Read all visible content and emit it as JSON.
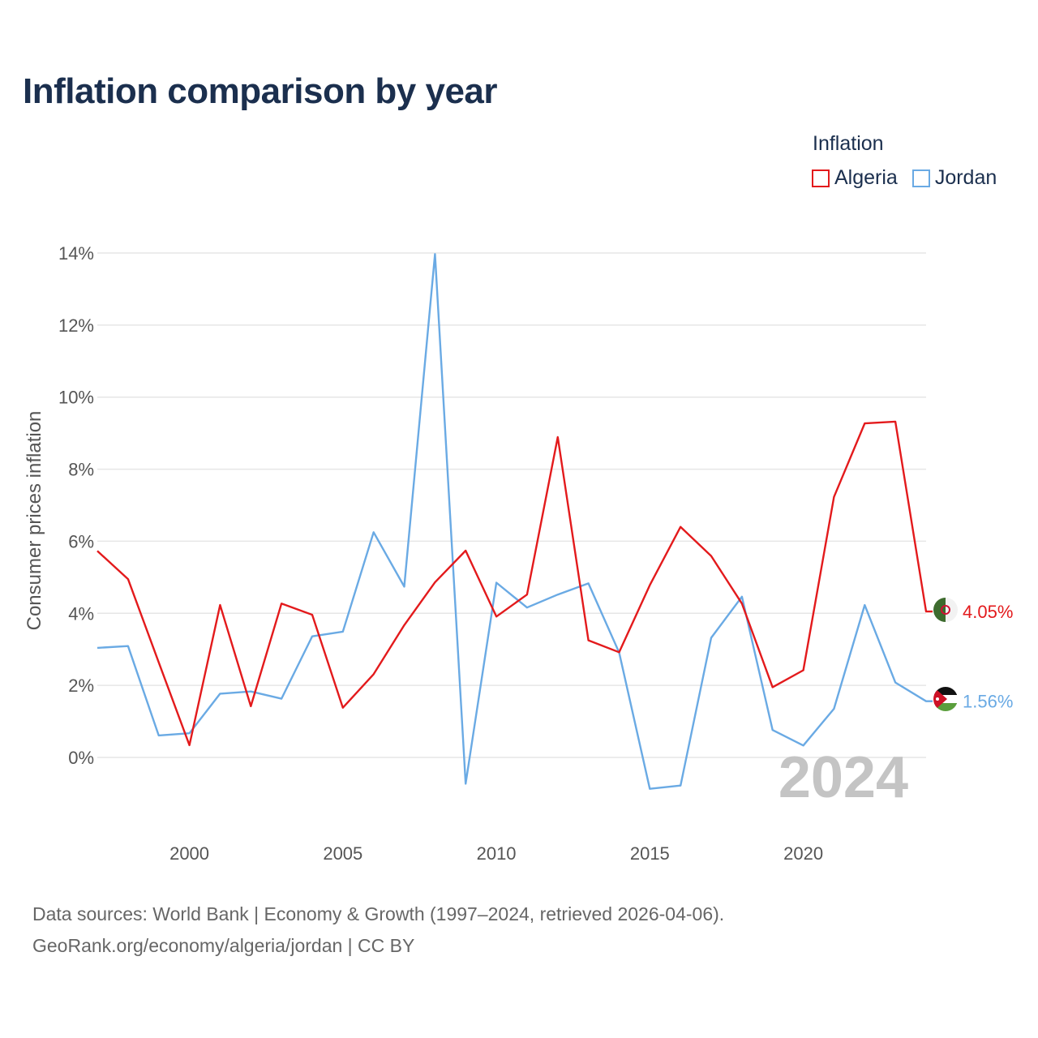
{
  "title": "Inflation comparison by year",
  "legend": {
    "title": "Inflation",
    "items": [
      {
        "label": "Algeria",
        "color": "#e31a1c"
      },
      {
        "label": "Jordan",
        "color": "#6aaae4"
      }
    ]
  },
  "chart_data": {
    "type": "line",
    "title": "Inflation comparison by year",
    "xlabel": "",
    "ylabel": "Consumer prices inflation",
    "xlim": [
      1997,
      2024
    ],
    "ylim": [
      -1.5,
      14
    ],
    "x_ticks": [
      2000,
      2005,
      2010,
      2015,
      2020
    ],
    "y_ticks": [
      0,
      2,
      4,
      6,
      8,
      10,
      12,
      14
    ],
    "y_tick_labels": [
      "0%",
      "2%",
      "4%",
      "6%",
      "8%",
      "10%",
      "12%",
      "14%"
    ],
    "grid": true,
    "x": [
      1997,
      1998,
      1999,
      2000,
      2001,
      2002,
      2003,
      2004,
      2005,
      2006,
      2007,
      2008,
      2009,
      2010,
      2011,
      2012,
      2013,
      2014,
      2015,
      2016,
      2017,
      2018,
      2019,
      2020,
      2021,
      2022,
      2023,
      2024
    ],
    "series": [
      {
        "name": "Algeria",
        "color": "#e31a1c",
        "values": [
          5.73,
          4.95,
          2.64,
          0.34,
          4.23,
          1.42,
          4.27,
          3.96,
          1.38,
          2.31,
          3.67,
          4.86,
          5.74,
          3.91,
          4.52,
          8.89,
          3.25,
          2.92,
          4.78,
          6.4,
          5.59,
          4.27,
          1.95,
          2.42,
          7.23,
          9.27,
          9.32,
          4.05
        ]
      },
      {
        "name": "Jordan",
        "color": "#6aaae4",
        "values": [
          3.04,
          3.09,
          0.61,
          0.67,
          1.77,
          1.83,
          1.63,
          3.36,
          3.49,
          6.25,
          4.74,
          13.97,
          -0.73,
          4.85,
          4.16,
          4.52,
          4.83,
          2.91,
          -0.87,
          -0.78,
          3.32,
          4.46,
          0.76,
          0.33,
          1.35,
          4.23,
          2.08,
          1.56
        ]
      }
    ],
    "end_labels": [
      {
        "series": "Algeria",
        "text": "4.05%",
        "flag": "algeria-flag"
      },
      {
        "series": "Jordan",
        "text": "1.56%",
        "flag": "jordan-flag"
      }
    ],
    "year_watermark": "2024"
  },
  "source": {
    "line1": "Data sources: World Bank | Economy & Growth (1997–2024, retrieved 2026-04-06).",
    "line2": "GeoRank.org/economy/algeria/jordan | CC BY"
  }
}
